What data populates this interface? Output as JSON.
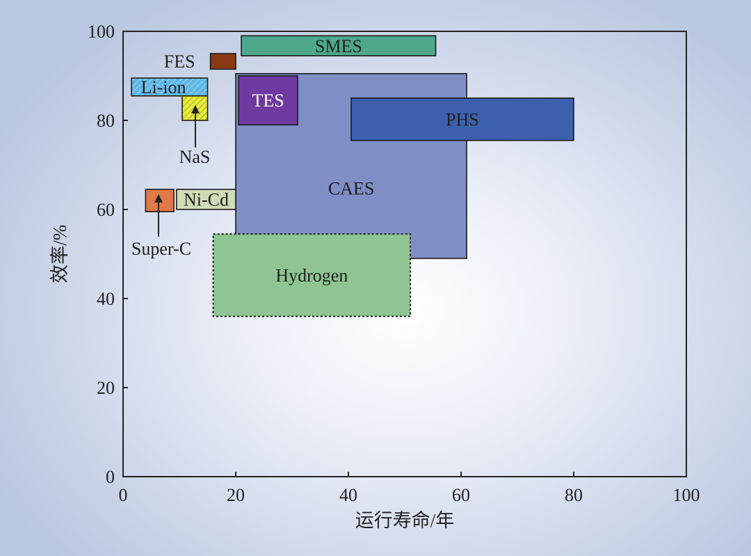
{
  "chart_data": {
    "type": "range-box",
    "xlabel": "运行寿命/年",
    "ylabel": "效率/%",
    "xlim": [
      0,
      100
    ],
    "ylim": [
      0,
      100
    ],
    "xticks": [
      0,
      20,
      40,
      60,
      80,
      100
    ],
    "yticks": [
      0,
      20,
      40,
      60,
      80,
      100
    ],
    "grid": false,
    "items": [
      {
        "name": "CAES",
        "lifetime": [
          20,
          61
        ],
        "efficiency": [
          49,
          90.5
        ],
        "color": "#7f8fc6",
        "label_color": "#1f1f1f"
      },
      {
        "name": "Hydrogen",
        "lifetime": [
          16,
          51
        ],
        "efficiency": [
          36,
          54.5
        ],
        "color": "#8ec592",
        "label_color": "#1f1f1f",
        "border": "dotted"
      },
      {
        "name": "SMES",
        "lifetime": [
          21,
          55.5
        ],
        "efficiency": [
          94.5,
          99
        ],
        "color": "#4fa78e",
        "label_color": "#1f1f1f"
      },
      {
        "name": "FES",
        "lifetime": [
          15.5,
          20
        ],
        "efficiency": [
          91.5,
          95
        ],
        "color": "#8a3a14",
        "label_color": "#1f1f1f"
      },
      {
        "name": "Li-ion",
        "lifetime": [
          1.5,
          15
        ],
        "efficiency": [
          85.5,
          89.5
        ],
        "color": "#5fb6e6",
        "label_color": "#1f1f1f",
        "pattern": "hatch"
      },
      {
        "name": "NaS",
        "lifetime": [
          10.5,
          15
        ],
        "efficiency": [
          80,
          85.5
        ],
        "color": "#e8ea3a",
        "label_color": "#1f1f1f",
        "pattern": "hatch"
      },
      {
        "name": "TES",
        "lifetime": [
          20.5,
          31
        ],
        "efficiency": [
          79,
          90
        ],
        "color": "#6f3aa0",
        "label_color": "#ffffff"
      },
      {
        "name": "PHS",
        "lifetime": [
          40.5,
          80
        ],
        "efficiency": [
          75.5,
          85
        ],
        "color": "#3c60ad",
        "label_color": "#1f1f1f"
      },
      {
        "name": "Super-C",
        "lifetime": [
          4,
          9
        ],
        "efficiency": [
          59.5,
          64.5
        ],
        "color": "#e07848",
        "label_color": "#1f1f1f"
      },
      {
        "name": "Ni-Cd",
        "lifetime": [
          9.5,
          20
        ],
        "efficiency": [
          60,
          64.5
        ],
        "color": "#cfdcb6",
        "label_color": "#1f1f1f"
      }
    ]
  }
}
